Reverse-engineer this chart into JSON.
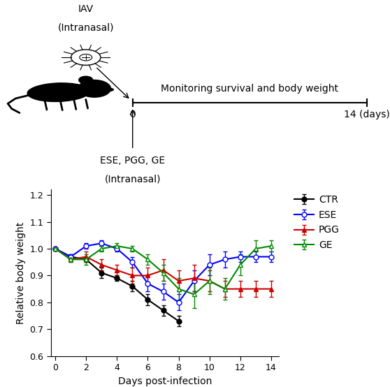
{
  "days": [
    0,
    1,
    2,
    3,
    4,
    5,
    6,
    7,
    8,
    9,
    10,
    11,
    12,
    13,
    14
  ],
  "CTR": {
    "y": [
      1.0,
      0.97,
      0.96,
      0.91,
      0.89,
      0.86,
      0.81,
      0.77,
      0.73,
      null,
      null,
      null,
      null,
      null,
      null
    ],
    "yerr": [
      0.0,
      0.01,
      0.01,
      0.02,
      0.01,
      0.02,
      0.02,
      0.02,
      0.02,
      null,
      null,
      null,
      null,
      null,
      null
    ],
    "color": "#000000",
    "marker": "o",
    "fillstyle": "full",
    "label": "CTR"
  },
  "ESE": {
    "y": [
      1.0,
      0.97,
      1.01,
      1.02,
      1.0,
      0.95,
      0.87,
      0.84,
      0.8,
      0.88,
      0.94,
      0.96,
      0.97,
      0.97,
      0.97
    ],
    "yerr": [
      0.0,
      0.01,
      0.01,
      0.01,
      0.01,
      0.02,
      0.03,
      0.03,
      0.03,
      0.04,
      0.04,
      0.03,
      0.02,
      0.02,
      0.02
    ],
    "color": "#0000ff",
    "marker": "o",
    "fillstyle": "none",
    "label": "ESE"
  },
  "PGG": {
    "y": [
      1.0,
      0.96,
      0.97,
      0.94,
      0.92,
      0.9,
      0.9,
      0.92,
      0.88,
      0.89,
      0.88,
      0.85,
      0.85,
      0.85,
      0.85
    ],
    "yerr": [
      0.0,
      0.01,
      0.02,
      0.02,
      0.02,
      0.03,
      0.03,
      0.04,
      0.04,
      0.05,
      0.04,
      0.03,
      0.03,
      0.03,
      0.03
    ],
    "color": "#cc0000",
    "marker": "^",
    "fillstyle": "full",
    "label": "PGG"
  },
  "GE": {
    "y": [
      1.0,
      0.96,
      0.96,
      1.0,
      1.01,
      1.0,
      0.96,
      0.91,
      0.85,
      0.83,
      0.88,
      0.85,
      0.94,
      1.0,
      1.01
    ],
    "yerr": [
      0.0,
      0.01,
      0.02,
      0.01,
      0.01,
      0.01,
      0.02,
      0.03,
      0.04,
      0.05,
      0.05,
      0.04,
      0.04,
      0.03,
      0.02
    ],
    "color": "#008800",
    "marker": "^",
    "fillstyle": "none",
    "label": "GE"
  },
  "xlabel": "Days post-infection",
  "ylabel": "Relative body weight",
  "ylim": [
    0.6,
    1.22
  ],
  "yticks": [
    0.6,
    0.7,
    0.8,
    0.9,
    1.0,
    1.1,
    1.2
  ],
  "xticks": [
    0,
    2,
    4,
    6,
    8,
    10,
    12,
    14
  ],
  "xlim": [
    -0.3,
    14.5
  ],
  "background_color": "#ffffff"
}
